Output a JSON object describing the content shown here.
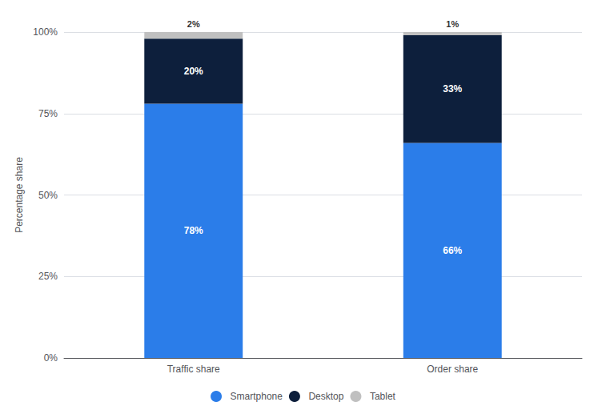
{
  "chart_data": {
    "type": "bar",
    "stacked": true,
    "categories": [
      "Traffic share",
      "Order share"
    ],
    "series": [
      {
        "name": "Smartphone",
        "color": "#2b7de9",
        "values": [
          78,
          66
        ],
        "value_labels": [
          "78%",
          "66%"
        ]
      },
      {
        "name": "Desktop",
        "color": "#0d1f3c",
        "values": [
          20,
          33
        ],
        "value_labels": [
          "20%",
          "33%"
        ]
      },
      {
        "name": "Tablet",
        "color": "#c0c0c0",
        "values": [
          2,
          1
        ],
        "value_labels": [
          "2%",
          "1%"
        ]
      }
    ],
    "ylabel": "Percentage share",
    "ylim": [
      0,
      100
    ],
    "yticks": [
      {
        "value": 0,
        "label": "0%"
      },
      {
        "value": 25,
        "label": "25%"
      },
      {
        "value": 50,
        "label": "50%"
      },
      {
        "value": 75,
        "label": "75%"
      },
      {
        "value": 100,
        "label": "100%"
      }
    ],
    "grid": true,
    "legend": "bottom",
    "data_labels": true
  }
}
